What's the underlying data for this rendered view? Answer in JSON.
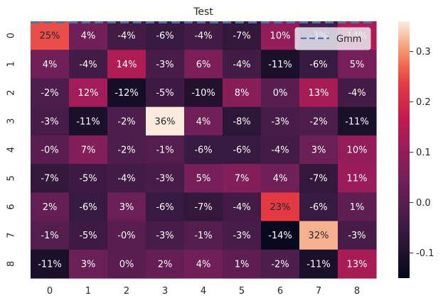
{
  "chart_data": {
    "type": "heatmap",
    "title": "Test",
    "rows": [
      "0",
      "1",
      "2",
      "3",
      "4",
      "5",
      "6",
      "7",
      "8"
    ],
    "cols": [
      "0",
      "1",
      "2",
      "3",
      "4",
      "5",
      "6",
      "7",
      "8"
    ],
    "values": [
      [
        0.25,
        0.04,
        -0.04,
        -0.06,
        -0.04,
        -0.07,
        0.1,
        -0.03,
        0.14
      ],
      [
        0.04,
        -0.04,
        0.14,
        -0.03,
        0.06,
        -0.04,
        -0.11,
        -0.06,
        0.05
      ],
      [
        -0.02,
        0.12,
        -0.12,
        -0.05,
        -0.1,
        0.08,
        0.0,
        0.13,
        -0.04
      ],
      [
        -0.03,
        -0.11,
        -0.02,
        0.36,
        0.04,
        -0.08,
        -0.03,
        -0.02,
        -0.11
      ],
      [
        -0.0,
        0.07,
        -0.02,
        -0.01,
        -0.06,
        -0.06,
        -0.04,
        0.03,
        0.1
      ],
      [
        -0.07,
        -0.05,
        -0.04,
        -0.03,
        0.05,
        0.07,
        0.04,
        -0.07,
        0.11
      ],
      [
        0.02,
        -0.06,
        0.03,
        -0.06,
        -0.07,
        -0.04,
        0.23,
        -0.06,
        0.01
      ],
      [
        -0.01,
        -0.05,
        -0.0,
        -0.03,
        -0.01,
        -0.03,
        -0.14,
        0.32,
        -0.03
      ],
      [
        -0.11,
        0.03,
        0.0,
        0.02,
        0.04,
        0.01,
        -0.02,
        -0.11,
        0.13
      ]
    ],
    "labels": [
      [
        "25%",
        "4%",
        "-4%",
        "-6%",
        "-4%",
        "-7%",
        "10%",
        "-3%",
        "14%"
      ],
      [
        "4%",
        "-4%",
        "14%",
        "-3%",
        "6%",
        "-4%",
        "-11%",
        "-6%",
        "5%"
      ],
      [
        "-2%",
        "12%",
        "-12%",
        "-5%",
        "-10%",
        "8%",
        "0%",
        "13%",
        "-4%"
      ],
      [
        "-3%",
        "-11%",
        "-2%",
        "36%",
        "4%",
        "-8%",
        "-3%",
        "-2%",
        "-11%"
      ],
      [
        "-0%",
        "7%",
        "-2%",
        "-1%",
        "-6%",
        "-6%",
        "-4%",
        "3%",
        "10%"
      ],
      [
        "-7%",
        "-5%",
        "-4%",
        "-3%",
        "5%",
        "7%",
        "4%",
        "-7%",
        "11%"
      ],
      [
        "2%",
        "-6%",
        "3%",
        "-6%",
        "-7%",
        "-4%",
        "23%",
        "-6%",
        "1%"
      ],
      [
        "-1%",
        "-5%",
        "-0%",
        "-3%",
        "-1%",
        "-3%",
        "-14%",
        "32%",
        "-3%"
      ],
      [
        "-11%",
        "3%",
        "0%",
        "2%",
        "4%",
        "1%",
        "-2%",
        "-11%",
        "13%"
      ]
    ],
    "vmin": -0.15,
    "vmax": 0.36,
    "colorbar_ticks": [
      -0.1,
      0.0,
      0.1,
      0.2,
      0.3
    ],
    "colorbar_tick_labels": [
      "-0.1",
      "0.0",
      "0.1",
      "0.2",
      "0.3"
    ],
    "legend": {
      "label": "Gmm",
      "position": "top-right",
      "line_color": "#4c72b0",
      "line_style": "dashed"
    },
    "overlay_line": {
      "color": "#4c72b0",
      "style": "dashed",
      "y_value": 0
    }
  }
}
